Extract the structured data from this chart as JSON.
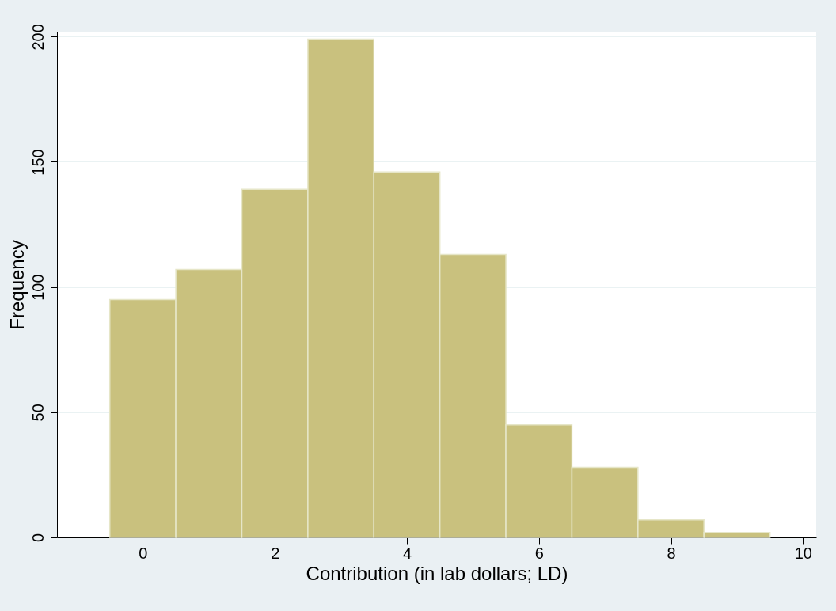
{
  "chart_data": {
    "type": "histogram",
    "xlabel": "Contribution (in lab dollars; LD)",
    "ylabel": "Frequency",
    "bins": [
      -0.5,
      0.5,
      1.5,
      2.5,
      3.5,
      4.5,
      5.5,
      6.5,
      7.5,
      8.5,
      9.5
    ],
    "values": [
      95,
      107,
      139,
      199,
      146,
      113,
      45,
      28,
      7,
      2
    ],
    "color": "#c9c17e",
    "xlim": [
      -1.3,
      10.2
    ],
    "xticks": [
      0,
      2,
      4,
      6,
      8,
      10
    ],
    "ylim": [
      0,
      202
    ],
    "yticks": [
      0,
      50,
      100,
      150,
      200
    ],
    "grid": "y"
  }
}
